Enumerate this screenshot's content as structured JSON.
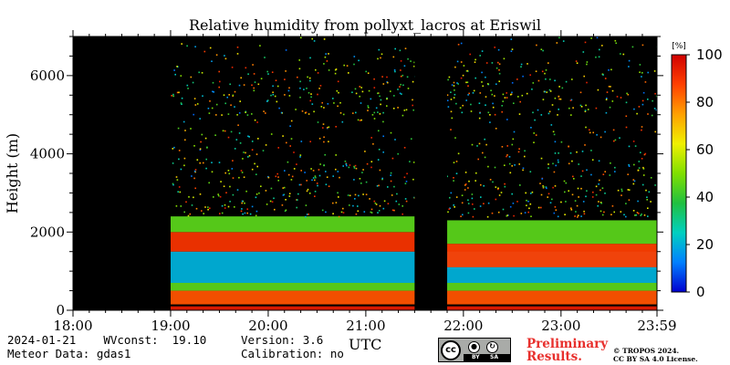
{
  "chart_data": {
    "type": "heatmap",
    "title": "Relative humidity from pollyxt_lacros at Eriswil",
    "xlabel": "UTC",
    "ylabel": "Height (m)",
    "x_ticks": [
      "18:00",
      "19:00",
      "20:00",
      "21:00",
      "22:00",
      "23:00",
      "23:59"
    ],
    "x_range": [
      "18:00",
      "23:59"
    ],
    "y_ticks": [
      0,
      2000,
      4000,
      6000
    ],
    "ylim": [
      0,
      7000
    ],
    "colorbar": {
      "unit_label": "[%]",
      "ticks": [
        0,
        20,
        40,
        60,
        80,
        100
      ],
      "range": [
        0,
        100
      ],
      "colors": [
        "#0000d0",
        "#0080ff",
        "#00d0c0",
        "#20c040",
        "#80e000",
        "#f0f000",
        "#ffa000",
        "#ff4000",
        "#d00000"
      ]
    },
    "no_data_intervals": [
      [
        "18:00",
        "19:00"
      ],
      [
        "21:30",
        "21:50"
      ]
    ],
    "layers": [
      {
        "from": "19:00",
        "to": "23:59",
        "height_range": [
          0,
          100
        ],
        "rh_percent": 95
      },
      {
        "from": "19:00",
        "to": "23:59",
        "height_range": [
          150,
          500
        ],
        "rh_percent": 85
      },
      {
        "from": "19:00",
        "to": "23:59",
        "height_range": [
          500,
          700
        ],
        "rh_percent": 45
      },
      {
        "from": "19:00",
        "to": "23:59",
        "height_range": [
          700,
          1500
        ],
        "rh_percent": 20
      },
      {
        "from": "19:00",
        "to": "21:30",
        "height_range": [
          1500,
          2000
        ],
        "rh_percent": 90
      },
      {
        "from": "21:50",
        "to": "23:59",
        "height_range": [
          1100,
          1700
        ],
        "rh_percent": 88
      },
      {
        "from": "19:00",
        "to": "21:30",
        "height_range": [
          2000,
          2400
        ],
        "rh_percent": 45
      },
      {
        "from": "21:50",
        "to": "23:59",
        "height_range": [
          1700,
          2300
        ],
        "rh_percent": 45
      },
      {
        "from": "19:00",
        "to": "23:59",
        "height_range": [
          2400,
          5000
        ],
        "rh_percent": 35
      },
      {
        "from": "19:00",
        "to": "23:59",
        "height_range": [
          5000,
          7000
        ],
        "rh_percent": 30
      }
    ]
  },
  "footer": {
    "line1": "2024-01-21    WVconst:  19.10",
    "line2": "Meteor Data: gdas1",
    "version": "Version: 3.6",
    "calibration": "Calibration: no",
    "xaxis_label": "UTC",
    "preliminary_line1": "Preliminary",
    "preliminary_line2": "Results.",
    "license_line1": "© TROPOS 2024.",
    "license_line2": "CC BY SA 4.0 License.",
    "cc_logo": {
      "circle": "cc",
      "by": "BY",
      "sa": "SA"
    }
  }
}
